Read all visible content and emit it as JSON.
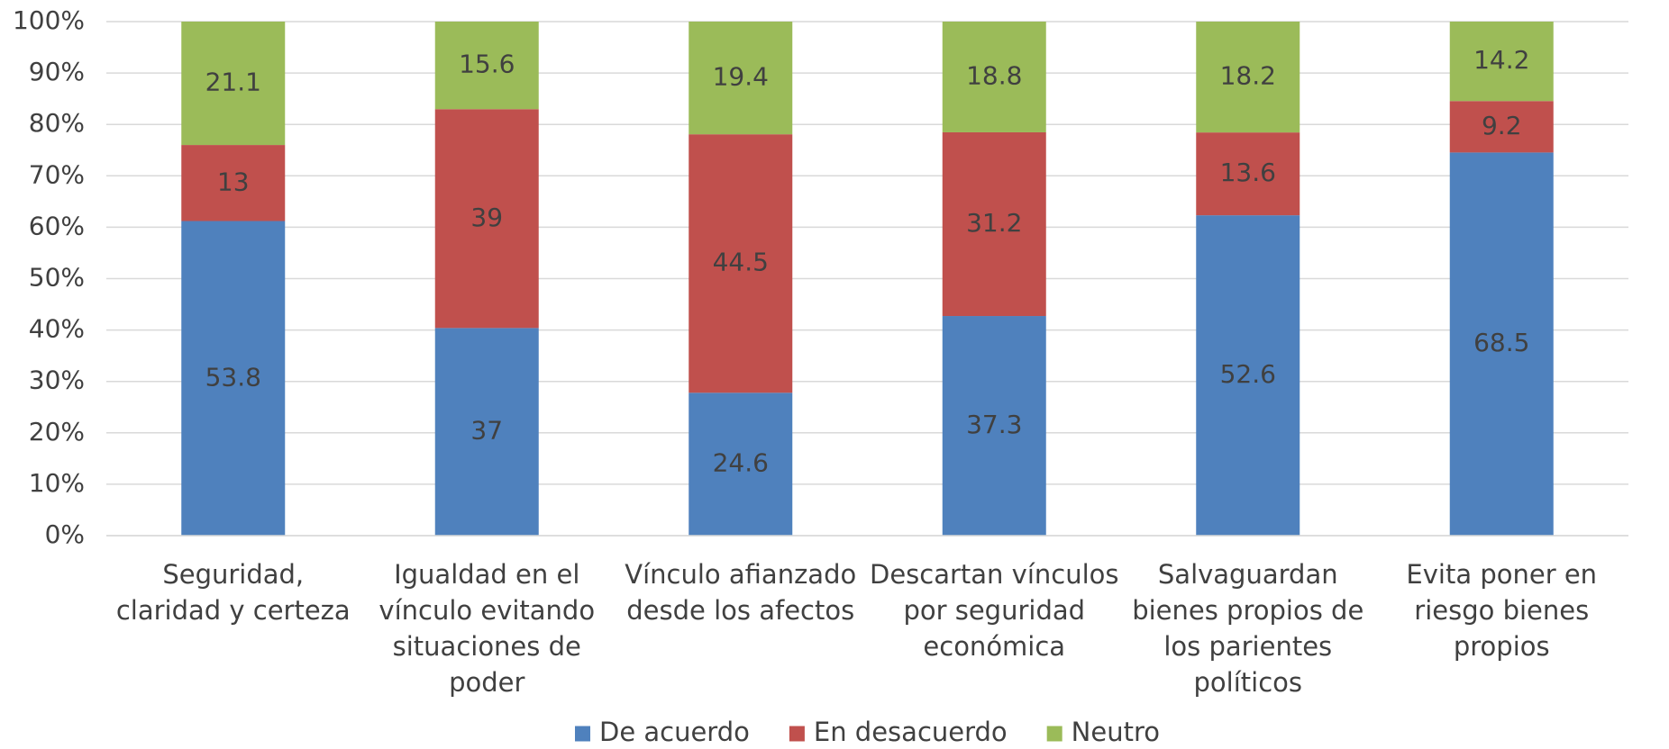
{
  "chart_data": {
    "type": "bar",
    "stack": "percent",
    "categories": [
      "Seguridad, claridad y certeza",
      "Igualdad en el vínculo evitando situaciones de poder",
      "Vínculo afianzado desde los afectos",
      "Descartan vínculos por seguridad económica",
      "Salvaguardan bienes propios de los parientes políticos",
      "Evita poner en riesgo bienes propios"
    ],
    "series": [
      {
        "name": "De acuerdo",
        "color": "#4f81bd",
        "values": [
          53.8,
          37,
          24.6,
          37.3,
          52.6,
          68.5
        ]
      },
      {
        "name": "En desacuerdo",
        "color": "#c0504d",
        "values": [
          13,
          39,
          44.5,
          31.2,
          13.6,
          9.2
        ]
      },
      {
        "name": "Neutro",
        "color": "#9bbb59",
        "values": [
          21.1,
          15.6,
          19.4,
          18.8,
          18.2,
          14.2
        ]
      }
    ],
    "ylim": [
      0,
      100
    ],
    "yticks": [
      {
        "value": 0,
        "label": "0%"
      },
      {
        "value": 10,
        "label": "10%"
      },
      {
        "value": 20,
        "label": "20%"
      },
      {
        "value": 30,
        "label": "30%"
      },
      {
        "value": 40,
        "label": "40%"
      },
      {
        "value": 50,
        "label": "50%"
      },
      {
        "value": 60,
        "label": "60%"
      },
      {
        "value": 70,
        "label": "70%"
      },
      {
        "value": 80,
        "label": "80%"
      },
      {
        "value": 90,
        "label": "90%"
      },
      {
        "value": 100,
        "label": "100%"
      }
    ],
    "grid": true,
    "legend": "bottom"
  }
}
